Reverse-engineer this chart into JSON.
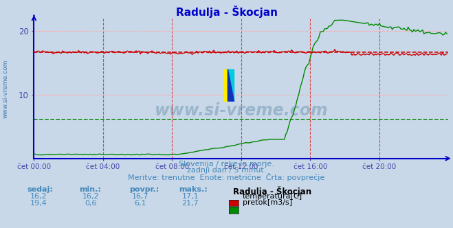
{
  "title": "Radulja - Škocjan",
  "title_color": "#0000cc",
  "bg_color": "#c8d8e8",
  "plot_bg_color": "#c8d8e8",
  "xlim": [
    0,
    288
  ],
  "ylim": [
    0,
    22
  ],
  "yticks": [
    10,
    20
  ],
  "ytick_labels": [
    "10",
    "20"
  ],
  "xtick_labels": [
    "čet 00:00",
    "čet 04:00",
    "čet 08:00",
    "čet 12:00",
    "čet 16:00",
    "čet 20:00"
  ],
  "xtick_positions": [
    0,
    48,
    96,
    144,
    192,
    240
  ],
  "temp_avg": 16.7,
  "temp_color": "#cc0000",
  "flow_color": "#008800",
  "flow_avg": 6.1,
  "watermark_text": "www.si-vreme.com",
  "left_label": "www.si-vreme.com",
  "left_label_color": "#4477aa",
  "footer_line1": "Slovenija / reke in morje.",
  "footer_line2": "zadnji dan / 5 minut.",
  "footer_line3": "Meritve: trenutne  Enote: metrične  Črta: povprečje",
  "footer_color": "#4488bb",
  "table_headers": [
    "sedaj:",
    "min.:",
    "povpr.:",
    "maks.:"
  ],
  "table_row1": [
    "16,2",
    "16,2",
    "16,7",
    "17,1"
  ],
  "table_row2": [
    "19,4",
    "0,6",
    "6,1",
    "21,7"
  ],
  "legend_title": "Radulja - Škocjan",
  "legend_label1": "temperatura[C]",
  "legend_label2": "pretok[m3/s]",
  "axis_color": "#0000cc",
  "tick_color": "#4444aa",
  "vgrid_color": "#dd4444",
  "hgrid_color": "#ffaaaa"
}
